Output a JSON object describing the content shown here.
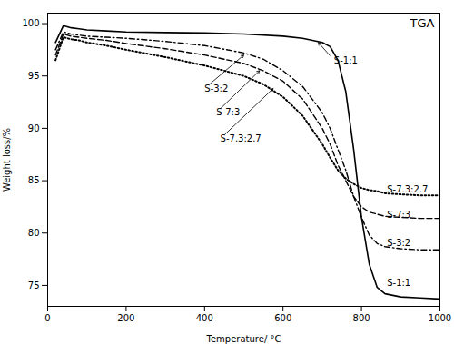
{
  "chart_data": {
    "type": "line",
    "title": "TGA",
    "xlabel": "Temperature/ °C",
    "ylabel": "Weight loss/%",
    "xlim": [
      0,
      1000
    ],
    "ylim": [
      73,
      101
    ],
    "xticks": [
      0,
      200,
      400,
      600,
      800,
      1000
    ],
    "yticks": [
      75,
      80,
      85,
      90,
      95,
      100
    ],
    "grid": false,
    "series": [
      {
        "name": "S-1:1",
        "color": "black",
        "line_style": "solid",
        "x": [
          20,
          40,
          60,
          80,
          100,
          150,
          200,
          300,
          400,
          500,
          600,
          650,
          700,
          720,
          740,
          760,
          780,
          800,
          820,
          840,
          860,
          900,
          950,
          1000
        ],
        "values": [
          98.2,
          99.8,
          99.6,
          99.5,
          99.4,
          99.3,
          99.2,
          99.15,
          99.1,
          99.0,
          98.8,
          98.6,
          98.2,
          97.8,
          96.5,
          93.5,
          88.0,
          81.5,
          77.0,
          74.8,
          74.2,
          73.9,
          73.8,
          73.7
        ]
      },
      {
        "name": "S-3:2",
        "color": "black",
        "line_style": "dashdot",
        "x": [
          20,
          40,
          60,
          80,
          100,
          150,
          200,
          300,
          400,
          500,
          550,
          600,
          650,
          700,
          720,
          740,
          760,
          780,
          800,
          820,
          840,
          860,
          900,
          950,
          1000
        ],
        "values": [
          97.5,
          99.2,
          99.0,
          98.9,
          98.8,
          98.7,
          98.6,
          98.3,
          97.9,
          97.2,
          96.6,
          95.5,
          94.0,
          91.5,
          90.0,
          88.0,
          86.0,
          83.5,
          81.5,
          79.8,
          79.0,
          78.7,
          78.5,
          78.4,
          78.4
        ]
      },
      {
        "name": "S-7:3",
        "color": "black",
        "line_style": "dashed",
        "x": [
          20,
          40,
          60,
          80,
          100,
          150,
          200,
          300,
          400,
          500,
          550,
          600,
          650,
          700,
          720,
          740,
          760,
          780,
          800,
          820,
          840,
          860,
          900,
          950,
          1000
        ],
        "values": [
          97.0,
          99.0,
          98.8,
          98.7,
          98.6,
          98.4,
          98.1,
          97.6,
          97.0,
          96.2,
          95.5,
          94.5,
          92.8,
          90.0,
          88.5,
          86.5,
          85.0,
          83.5,
          82.5,
          82.0,
          81.8,
          81.6,
          81.5,
          81.4,
          81.4
        ]
      },
      {
        "name": "S-7.3:2.7",
        "color": "black",
        "line_style": "dotted",
        "x": [
          20,
          40,
          60,
          80,
          100,
          150,
          200,
          300,
          400,
          500,
          550,
          600,
          650,
          700,
          720,
          740,
          760,
          780,
          800,
          820,
          840,
          860,
          900,
          950,
          1000
        ],
        "values": [
          96.5,
          98.7,
          98.5,
          98.4,
          98.2,
          97.9,
          97.5,
          96.8,
          96.0,
          95.0,
          94.2,
          93.0,
          91.2,
          88.5,
          87.2,
          86.0,
          85.2,
          84.7,
          84.3,
          84.1,
          84.0,
          83.8,
          83.7,
          83.6,
          83.6
        ]
      }
    ],
    "annotations": [
      {
        "text": "S-1:1",
        "xy": [
          690,
          98.2
        ],
        "xytext": [
          730,
          96.5
        ]
      },
      {
        "text": "S-3:2",
        "xy": [
          500,
          97.0
        ],
        "xytext": [
          400,
          93.8
        ]
      },
      {
        "text": "S-7:3",
        "xy": [
          540,
          95.5
        ],
        "xytext": [
          430,
          91.5
        ]
      },
      {
        "text": "S-7.3:2.7",
        "xy": [
          575,
          93.8
        ],
        "xytext": [
          440,
          89.0
        ]
      },
      {
        "text": "S-7.3:2.7",
        "x": 865,
        "y": 84.2
      },
      {
        "text": "S-7:3",
        "x": 865,
        "y": 81.7
      },
      {
        "text": "S-3:2",
        "x": 865,
        "y": 79.0
      },
      {
        "text": "S-1:1",
        "x": 865,
        "y": 75.2
      }
    ]
  }
}
